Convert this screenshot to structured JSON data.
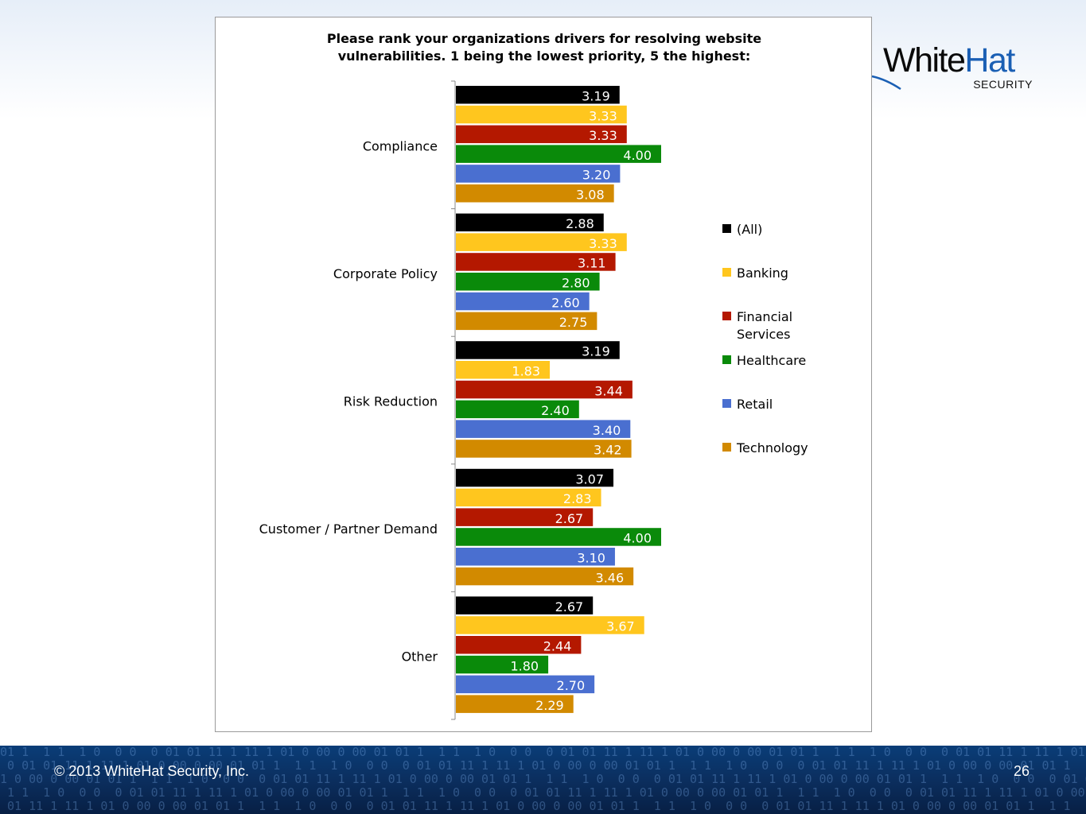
{
  "chart_data": {
    "type": "bar",
    "orientation": "horizontal",
    "title": "Please rank your organizations drivers for resolving website vulnerabilities. 1 being the lowest priority, 5 the highest:",
    "title_lines": [
      "Please rank your organizations drivers for resolving website",
      "vulnerabilities. 1 being the lowest priority, 5 the highest:"
    ],
    "categories": [
      "Compliance",
      "Corporate Policy",
      "Risk Reduction",
      "Customer / Partner Demand",
      "Other"
    ],
    "series": [
      {
        "name": "(All)",
        "color": "#000000",
        "values": [
          3.19,
          2.88,
          3.19,
          3.07,
          2.67
        ]
      },
      {
        "name": "Banking",
        "color": "#ffc61e",
        "values": [
          3.33,
          3.33,
          1.83,
          2.83,
          3.67
        ]
      },
      {
        "name": "Financial Services",
        "color": "#b41800",
        "values": [
          3.33,
          3.11,
          3.44,
          2.67,
          2.44
        ]
      },
      {
        "name": "Healthcare",
        "color": "#0a8a0a",
        "values": [
          4.0,
          2.8,
          2.4,
          4.0,
          1.8
        ]
      },
      {
        "name": "Retail",
        "color": "#4a6fd0",
        "values": [
          3.2,
          2.6,
          3.4,
          3.1,
          2.7
        ]
      },
      {
        "name": "Technology",
        "color": "#d28a00",
        "values": [
          3.08,
          2.75,
          3.42,
          3.46,
          2.29
        ]
      }
    ],
    "legend_labels": [
      [
        "(All)"
      ],
      [
        "Banking"
      ],
      [
        "Financial",
        "Services"
      ],
      [
        "Healthcare"
      ],
      [
        "Retail"
      ],
      [
        "Technology"
      ]
    ],
    "xlim": [
      0,
      5
    ],
    "grid": false,
    "legend_position": "right",
    "data_labels": true,
    "label_decimals": 2
  },
  "logo": {
    "word_part1": "White",
    "word_part2": "Hat",
    "sub": "SECURITY",
    "color1": "#0a0a0a",
    "color2": "#1a5fb4"
  },
  "footer": {
    "copyright": "© 2013 WhiteHat Security, Inc.",
    "page_number": "26"
  }
}
